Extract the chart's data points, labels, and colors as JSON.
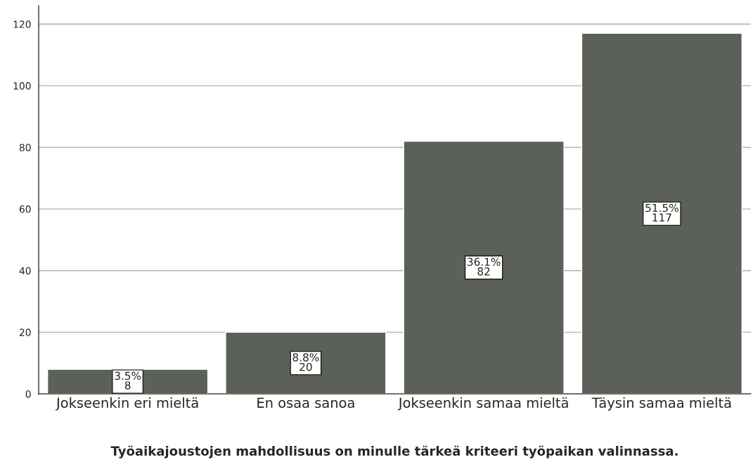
{
  "chart_data": {
    "type": "bar",
    "xlabel": "Työaikajoustojen mahdollisuus on minulle tärkeä kriteeri työpaikan valinnassa.",
    "categories": [
      "Jokseenkin eri mieltä",
      "En osaa sanoa",
      "Jokseenkin samaa mieltä",
      "Täysin samaa mieltä"
    ],
    "values": [
      8,
      20,
      82,
      117
    ],
    "value_labels": [
      "3.5%\n8",
      "8.8%\n20",
      "36.1%\n82",
      "51.5%\n117"
    ],
    "color": "#5b6158",
    "ylim": [
      0,
      126
    ],
    "yticks": [
      0,
      20,
      40,
      60,
      80,
      100,
      120
    ],
    "grid": "y",
    "legend": false
  }
}
